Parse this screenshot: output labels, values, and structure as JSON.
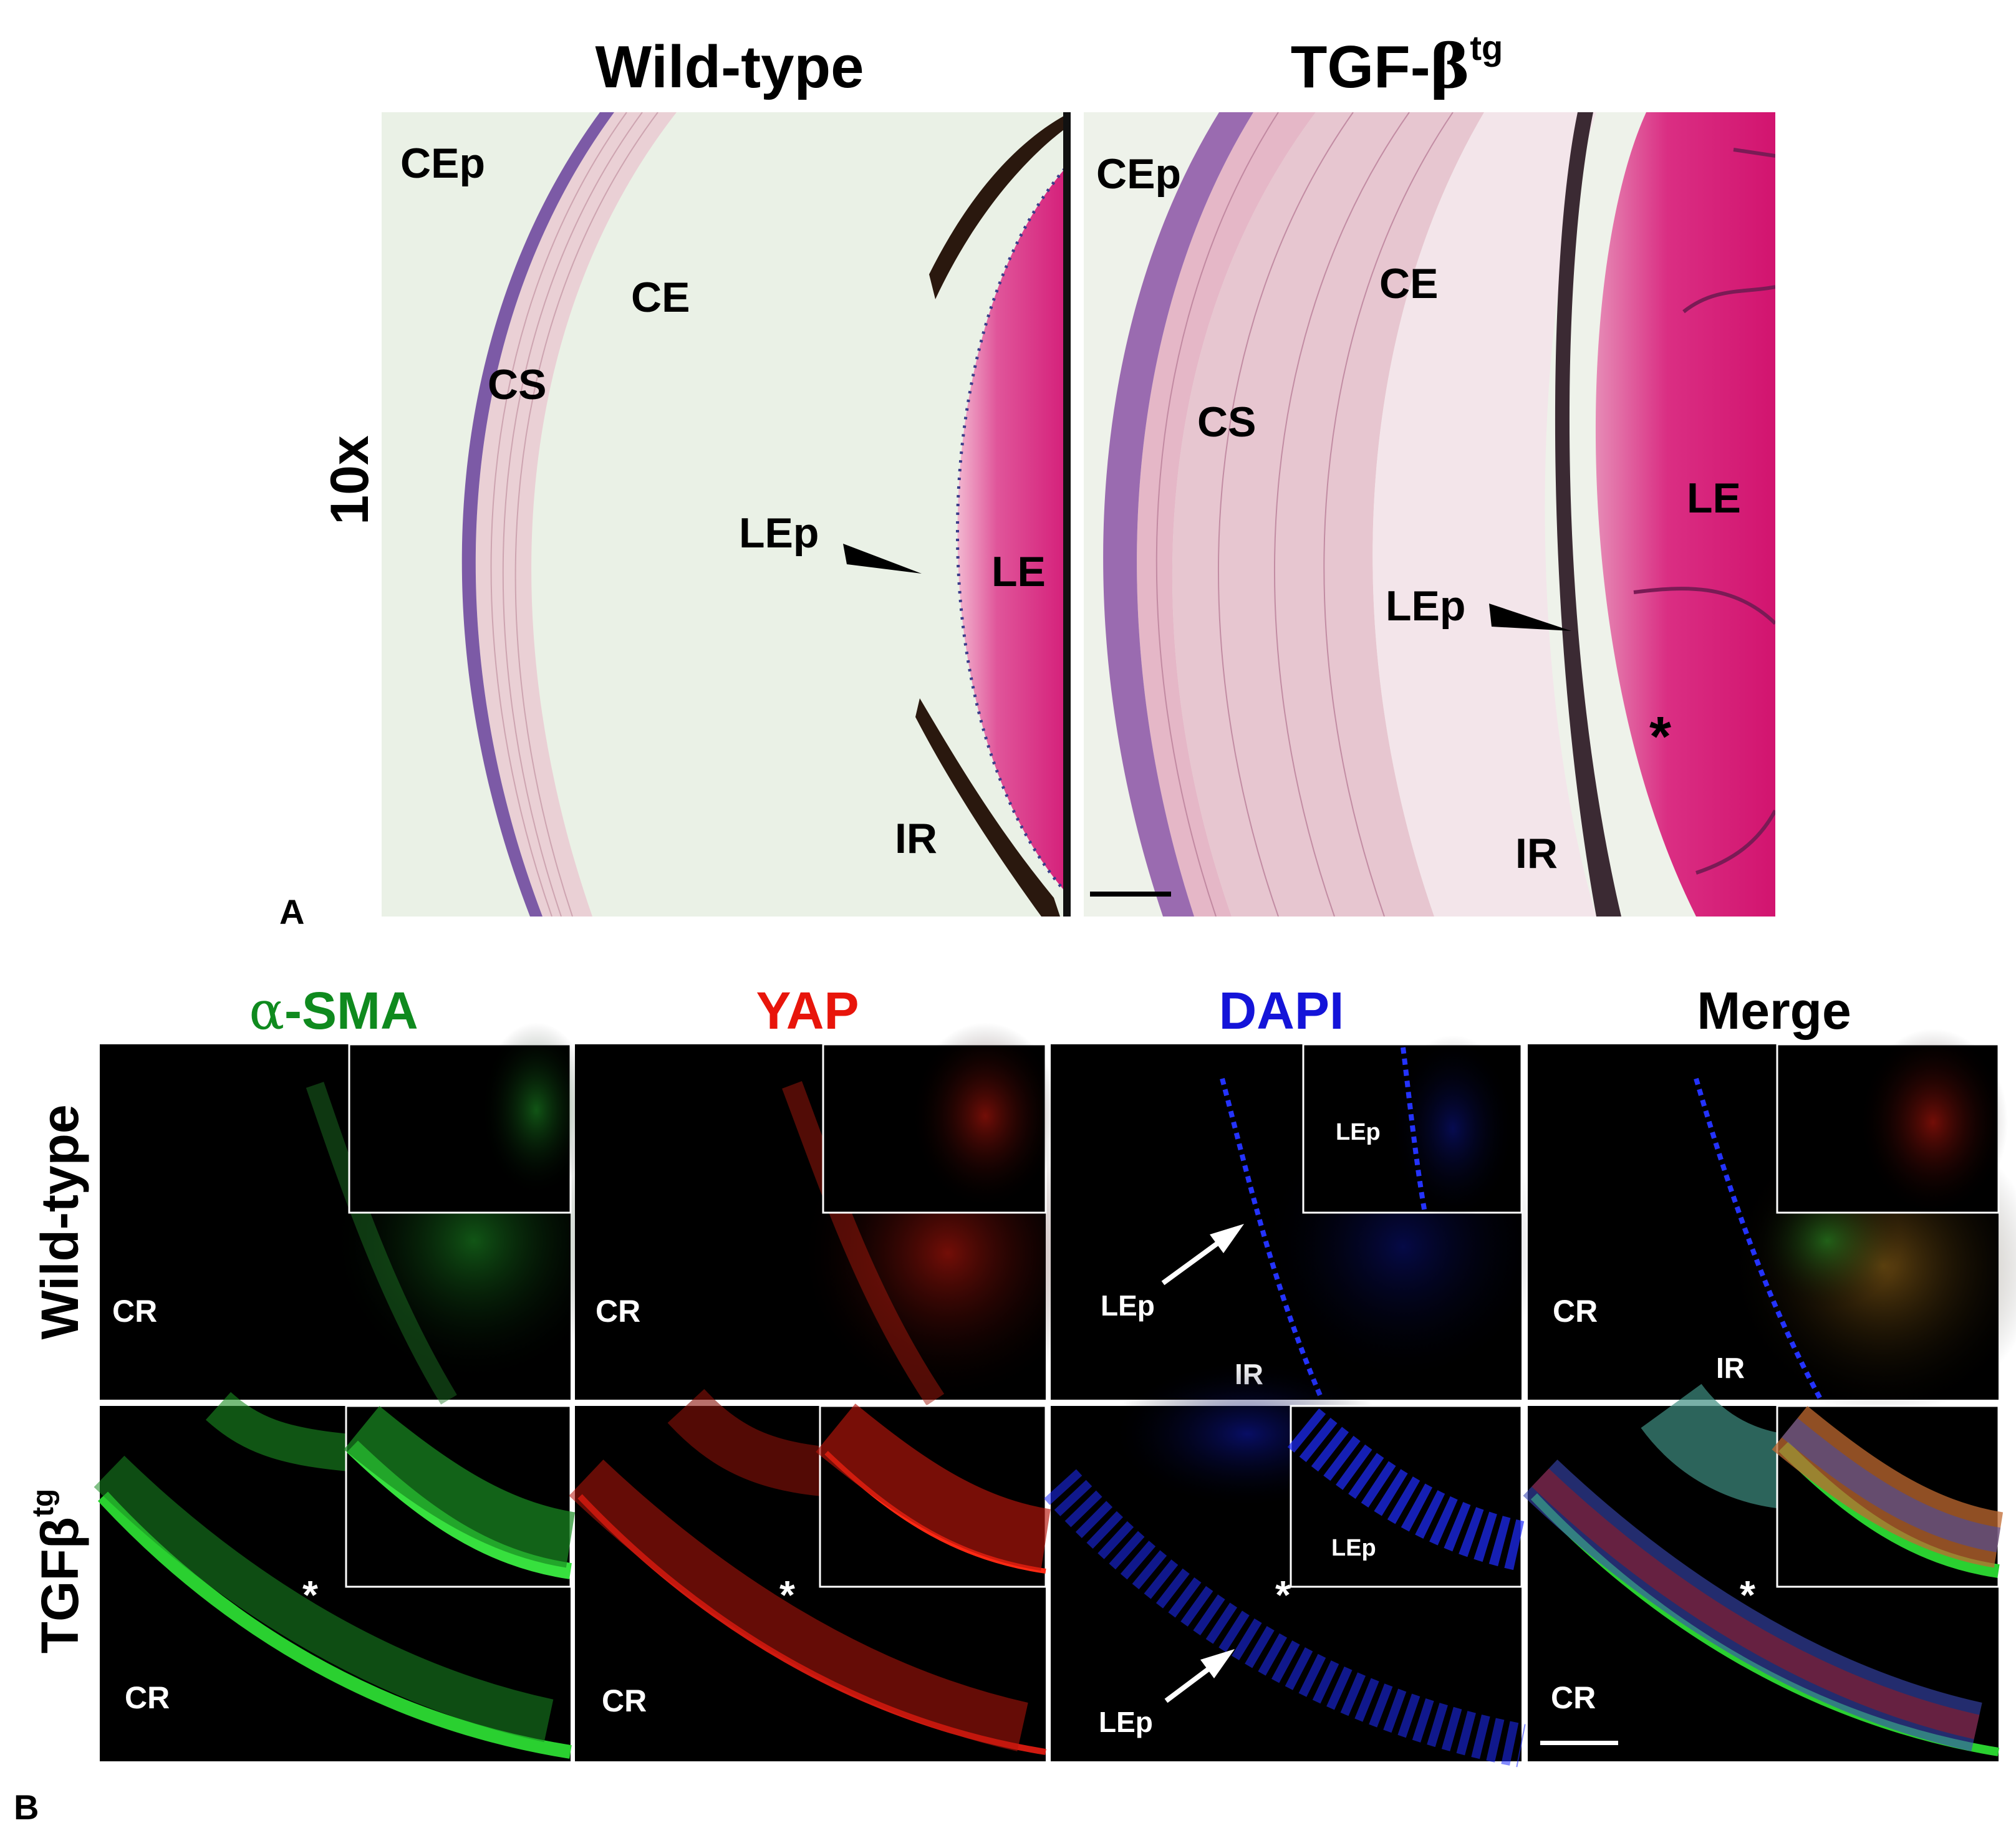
{
  "panel_a": {
    "letter": "A",
    "magnification": "10x",
    "column_titles": {
      "wild_type": "Wild-type",
      "tgf_prefix": "TGF-",
      "tgf_beta": "β",
      "tgf_sup": "tg"
    },
    "wt_labels": {
      "cep": "CEp",
      "ce": "CE",
      "cs": "CS",
      "lep": "LEp",
      "le": "LE",
      "ir": "IR"
    },
    "tg_labels": {
      "cep": "CEp",
      "ce": "CE",
      "cs": "CS",
      "le": "LE",
      "lep": "LEp",
      "ir": "IR",
      "asterisk": "*"
    },
    "colors": {
      "background": "#eaf1e6",
      "epithelium": "#7c5aa6",
      "stroma": "#e9c9d0",
      "lens": "#d8247e",
      "pigment": "#2a180e"
    }
  },
  "panel_b": {
    "letter": "B",
    "column_titles": {
      "alpha": "α",
      "sma": "-SMA",
      "yap": "YAP",
      "dapi": "DAPI",
      "merge": "Merge"
    },
    "row_titles": {
      "wild_type": "Wild-type",
      "tgf": "TGFβ",
      "tgf_sup": "tg"
    },
    "labels": {
      "cr": "CR",
      "lep": "LEp",
      "ir": "IR",
      "asterisk": "*"
    },
    "colors": {
      "sma": "#22c22a",
      "yap": "#ff2a14",
      "dapi": "#1e2cff",
      "title_sma": "#0f8a1e",
      "title_yap": "#e8150b",
      "title_dapi": "#1414d9"
    }
  }
}
